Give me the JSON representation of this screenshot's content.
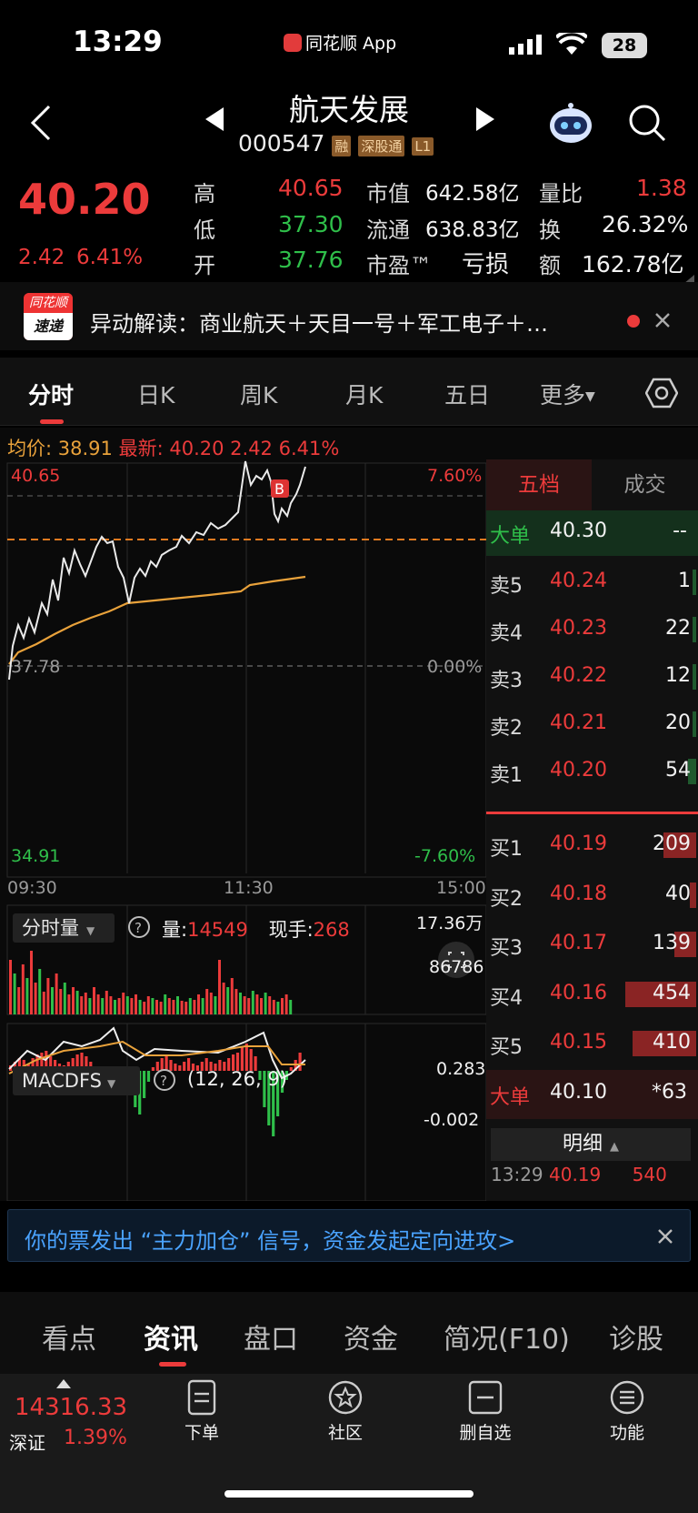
{
  "status": {
    "time": "13:29",
    "app": "同花顺 App",
    "battery": "28"
  },
  "header": {
    "name": "航天发展",
    "code": "000547",
    "tags": [
      "融",
      "深股通",
      "L1"
    ]
  },
  "quote": {
    "price": "40.20",
    "change": "2.42",
    "pct": "6.41%",
    "rows": [
      {
        "l1": "高",
        "v1": "40.65",
        "l2": "市值",
        "v2": "642.58亿",
        "l3": "量比",
        "v3": "1.38"
      },
      {
        "l1": "低",
        "v1": "37.30",
        "l2": "流通",
        "v2": "638.83亿",
        "l3": "换",
        "v3": "26.32%"
      },
      {
        "l1": "开",
        "v1": "37.76",
        "l2": "市盈™",
        "v2": "亏损",
        "l3": "额",
        "v3": "162.78亿"
      }
    ]
  },
  "news": {
    "logo1": "同花顺",
    "logo2": "速递",
    "text": "异动解读：商业航天＋天目一号＋军工电子＋…"
  },
  "tabs": [
    "分时",
    "日K",
    "周K",
    "月K",
    "五日",
    "更多"
  ],
  "chart": {
    "avg_label": "均价:",
    "avg_val": "38.91",
    "latest_label": "最新:",
    "latest_val": "40.20",
    "latest_chg": "2.42",
    "latest_pct": "6.41%",
    "top_left": "40.65",
    "top_right": "7.60%",
    "mid_left": "37.78",
    "mid_right": "0.00%",
    "bot_left": "34.91",
    "bot_right": "-7.60%",
    "t1": "09:30",
    "t2": "11:30",
    "t3": "15:00",
    "vol_tab": "分时量",
    "vol_label": "量:",
    "vol_val": "14549",
    "hand_label": "现手:",
    "hand_val": "268",
    "vol_max": "17.36万",
    "vol_mid": "86786",
    "macd_tab": "MACDFS",
    "macd_params": "(12, 26, 9)",
    "macd_hi": "0.283",
    "macd_lo": "-0.002",
    "buy_marker": "B"
  },
  "book": {
    "tab1": "五档",
    "tab2": "成交",
    "big_sell": {
      "label": "大单",
      "price": "40.30",
      "vol": "--"
    },
    "sells": [
      {
        "label": "卖5",
        "price": "40.24",
        "vol": "1"
      },
      {
        "label": "卖4",
        "price": "40.23",
        "vol": "22"
      },
      {
        "label": "卖3",
        "price": "40.22",
        "vol": "12"
      },
      {
        "label": "卖2",
        "price": "40.21",
        "vol": "20"
      },
      {
        "label": "卖1",
        "price": "40.20",
        "vol": "54"
      }
    ],
    "buys": [
      {
        "label": "买1",
        "price": "40.19",
        "vol": "209"
      },
      {
        "label": "买2",
        "price": "40.18",
        "vol": "40"
      },
      {
        "label": "买3",
        "price": "40.17",
        "vol": "139"
      },
      {
        "label": "买4",
        "price": "40.16",
        "vol": "454"
      },
      {
        "label": "买5",
        "price": "40.15",
        "vol": "410"
      }
    ],
    "big_buy": {
      "label": "大单",
      "price": "40.10",
      "vol": "*63"
    },
    "detail": "明细",
    "trade": {
      "time": "13:29",
      "price": "40.19",
      "vol": "540"
    }
  },
  "alert": "你的票发出 “主力加仓” 信号，资金发起定向进攻>",
  "bottom_tabs": [
    "看点",
    "资讯",
    "盘口",
    "资金",
    "简况(F10)",
    "诊股"
  ],
  "index": {
    "value": "14316.33",
    "name": "深证",
    "pct": "1.39%"
  },
  "nav": [
    "下单",
    "社区",
    "删自选",
    "功能"
  ],
  "colors": {
    "up": "#ec3b3b",
    "down": "#2fbf4a",
    "avg": "#e9a23b",
    "bg": "#0a0a0a"
  }
}
